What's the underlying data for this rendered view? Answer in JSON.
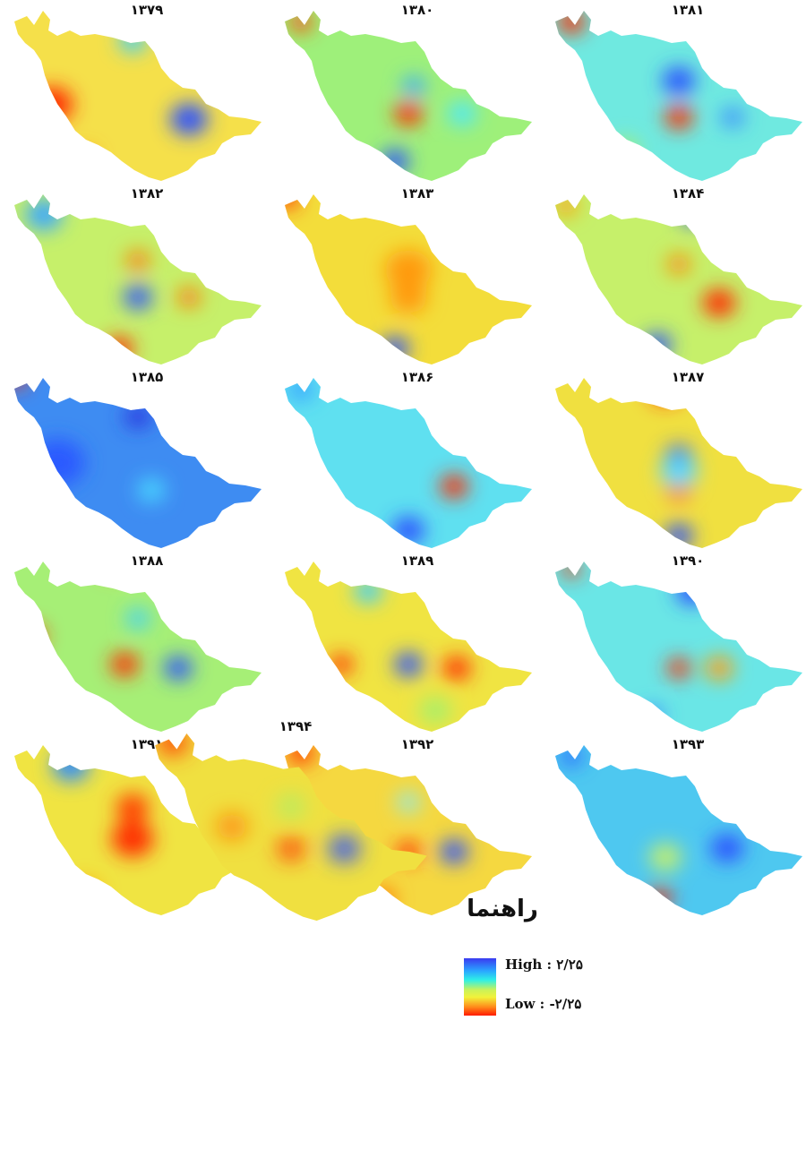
{
  "figure": {
    "panels": [
      {
        "year": "۱۳۷۹",
        "base": "#f5e04a",
        "spots": [
          [
            "#ff2a00",
            0.18,
            0.55,
            0.9
          ],
          [
            "#2a4fff",
            0.69,
            0.63,
            0.8
          ],
          [
            "#3ad0ff",
            0.48,
            0.2,
            0.6
          ],
          [
            "#ff7a10",
            0.3,
            0.85,
            0.5
          ]
        ]
      },
      {
        "year": "۱۳۸۰",
        "base": "#9ef07a",
        "spots": [
          [
            "#ff2a00",
            0.5,
            0.6,
            0.6
          ],
          [
            "#2a4fff",
            0.45,
            0.86,
            0.6
          ],
          [
            "#3aa8ff",
            0.52,
            0.45,
            0.5
          ],
          [
            "#ff4a10",
            0.1,
            0.1,
            0.5
          ],
          [
            "#4ae8ff",
            0.7,
            0.6,
            0.6
          ]
        ]
      },
      {
        "year": "۱۳۸۱",
        "base": "#6fe9e0",
        "spots": [
          [
            "#2a4fff",
            0.5,
            0.42,
            0.7
          ],
          [
            "#ff2a00",
            0.5,
            0.62,
            0.6
          ],
          [
            "#ff2a00",
            0.1,
            0.1,
            0.6
          ],
          [
            "#3a8cff",
            0.7,
            0.62,
            0.5
          ],
          [
            "#a8f06a",
            0.3,
            0.8,
            0.6
          ]
        ]
      },
      {
        "year": "۱۳۸۲",
        "base": "#c6f06a",
        "spots": [
          [
            "#2a4fff",
            0.5,
            0.6,
            0.6
          ],
          [
            "#ff7a10",
            0.5,
            0.4,
            0.5
          ],
          [
            "#ff7a10",
            0.69,
            0.6,
            0.5
          ],
          [
            "#ff2a00",
            0.43,
            0.88,
            0.6
          ],
          [
            "#3aa8ff",
            0.15,
            0.15,
            0.8
          ]
        ]
      },
      {
        "year": "۱۳۸۳",
        "base": "#f3dd3a",
        "spots": [
          [
            "#ff9a10",
            0.5,
            0.45,
            1.0
          ],
          [
            "#ff9a10",
            0.5,
            0.6,
            0.8
          ],
          [
            "#2a4fff",
            0.45,
            0.88,
            0.6
          ],
          [
            "#ff2a00",
            0.05,
            0.06,
            0.5
          ]
        ]
      },
      {
        "year": "۱۳۸۴",
        "base": "#c6f06a",
        "spots": [
          [
            "#ff2a00",
            0.65,
            0.63,
            0.7
          ],
          [
            "#ff8a10",
            0.5,
            0.42,
            0.5
          ],
          [
            "#2a4fff",
            0.42,
            0.86,
            0.6
          ],
          [
            "#2a4fff",
            0.55,
            0.15,
            0.5
          ],
          [
            "#ffa010",
            0.08,
            0.1,
            0.5
          ]
        ]
      },
      {
        "year": "۱۳۸۵",
        "base": "#3e8cf2",
        "spots": [
          [
            "#2a5aff",
            0.2,
            0.5,
            1.2
          ],
          [
            "#4ad8ff",
            0.55,
            0.65,
            0.6
          ],
          [
            "#ff2a00",
            0.05,
            0.05,
            0.4
          ],
          [
            "#2a3ae0",
            0.5,
            0.25,
            0.6
          ]
        ]
      },
      {
        "year": "۱۳۸۶",
        "base": "#5fe0f0",
        "spots": [
          [
            "#ff2a00",
            0.67,
            0.63,
            0.6
          ],
          [
            "#2a4fff",
            0.5,
            0.87,
            0.7
          ],
          [
            "#3aa8ff",
            0.1,
            0.1,
            0.6
          ]
        ]
      },
      {
        "year": "۱۳۸۷",
        "base": "#f0e040",
        "spots": [
          [
            "#ff2a00",
            0.45,
            0.1,
            0.7
          ],
          [
            "#2a4fff",
            0.5,
            0.47,
            0.6
          ],
          [
            "#ff5a00",
            0.5,
            0.65,
            0.5
          ],
          [
            "#2a4fff",
            0.5,
            0.9,
            0.6
          ],
          [
            "#5ad8ff",
            0.5,
            0.55,
            0.8
          ]
        ]
      },
      {
        "year": "۱۳۸۸",
        "base": "#a6ef76",
        "spots": [
          [
            "#ff2a00",
            0.45,
            0.6,
            0.6
          ],
          [
            "#2a4fff",
            0.65,
            0.62,
            0.6
          ],
          [
            "#ff2a00",
            0.1,
            0.45,
            0.6
          ],
          [
            "#3ad0ff",
            0.5,
            0.35,
            0.5
          ],
          [
            "#ff7a10",
            0.4,
            0.08,
            0.3
          ]
        ]
      },
      {
        "year": "۱۳۸۹",
        "base": "#f0e442",
        "spots": [
          [
            "#2a4fff",
            0.5,
            0.6,
            0.6
          ],
          [
            "#ff2a00",
            0.68,
            0.62,
            0.6
          ],
          [
            "#ff2a00",
            0.25,
            0.6,
            0.5
          ],
          [
            "#3ad0ff",
            0.35,
            0.2,
            0.6
          ],
          [
            "#a8f06a",
            0.6,
            0.85,
            0.7
          ]
        ]
      },
      {
        "year": "۱۳۹۰",
        "base": "#6ae6e6",
        "spots": [
          [
            "#ff2a00",
            0.5,
            0.62,
            0.5
          ],
          [
            "#ffa010",
            0.65,
            0.62,
            0.6
          ],
          [
            "#2a4fff",
            0.55,
            0.2,
            0.7
          ],
          [
            "#ff2a00",
            0.1,
            0.08,
            0.4
          ],
          [
            "#3a8cff",
            0.4,
            0.88,
            0.5
          ]
        ]
      },
      {
        "year": "۱۳۹۱",
        "base": "#f0e442",
        "spots": [
          [
            "#ff2a00",
            0.48,
            0.55,
            0.9
          ],
          [
            "#ff3a00",
            0.48,
            0.38,
            0.7
          ],
          [
            "#2a8cff",
            0.25,
            0.15,
            0.8
          ],
          [
            "#ffa010",
            0.3,
            0.85,
            0.7
          ]
        ]
      },
      {
        "year": "۱۳۹۲",
        "base": "#f5d840",
        "spots": [
          [
            "#2a4fff",
            0.67,
            0.62,
            0.6
          ],
          [
            "#ff2a00",
            0.5,
            0.62,
            0.5
          ],
          [
            "#ff3a00",
            0.1,
            0.08,
            0.6
          ],
          [
            "#8aeaf0",
            0.5,
            0.35,
            0.5
          ],
          [
            "#ff7a10",
            0.4,
            0.88,
            0.6
          ]
        ]
      },
      {
        "year": "۱۳۹۳",
        "base": "#4ec8f0",
        "spots": [
          [
            "#2a4fff",
            0.68,
            0.6,
            0.7
          ],
          [
            "#ff2a00",
            0.43,
            0.87,
            0.5
          ],
          [
            "#c6f06a",
            0.45,
            0.65,
            0.7
          ],
          [
            "#2a6aff",
            0.1,
            0.1,
            0.5
          ]
        ]
      },
      {
        "year": "۱۳۹۴",
        "base": "#f0e040",
        "spots": [
          [
            "#2a4fff",
            0.68,
            0.61,
            0.6
          ],
          [
            "#ff2a00",
            0.5,
            0.61,
            0.5
          ],
          [
            "#ff3a00",
            0.1,
            0.08,
            0.6
          ],
          [
            "#ff8a10",
            0.3,
            0.5,
            0.6
          ],
          [
            "#a8f06a",
            0.5,
            0.4,
            0.5
          ]
        ]
      }
    ],
    "legend": {
      "title": "راهنما",
      "high_label": "High : ۲/۲۵",
      "low_label": "Low : -۲/۲۵",
      "high_color": "#3a3af0",
      "low_color": "#ff1a00"
    }
  }
}
